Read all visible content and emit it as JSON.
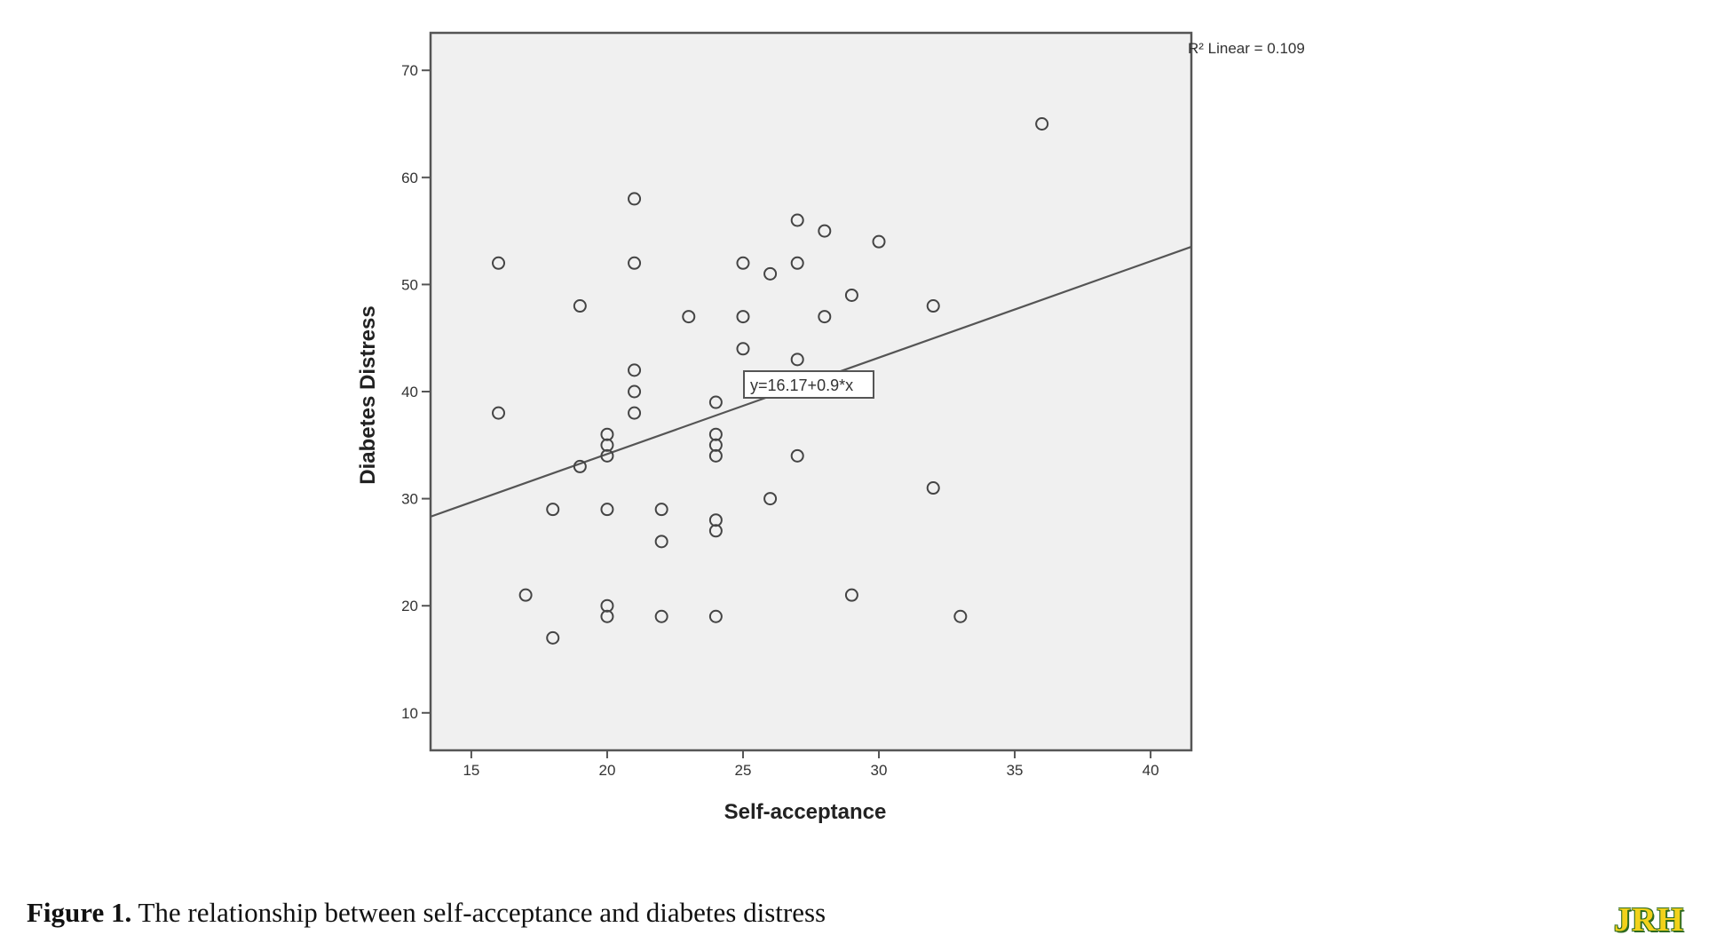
{
  "chart_data": {
    "type": "scatter",
    "xlabel": "Self-acceptance",
    "ylabel": "Diabetes Distress",
    "xlim": [
      13.5,
      41.5
    ],
    "ylim": [
      6.5,
      73.5
    ],
    "xticks": [
      15,
      20,
      25,
      30,
      35,
      40
    ],
    "yticks": [
      10,
      20,
      30,
      40,
      50,
      60,
      70
    ],
    "points": [
      [
        16,
        52
      ],
      [
        16,
        38
      ],
      [
        17,
        21
      ],
      [
        18,
        29
      ],
      [
        18,
        17
      ],
      [
        19,
        48
      ],
      [
        19,
        33
      ],
      [
        20,
        36
      ],
      [
        20,
        35
      ],
      [
        20,
        34
      ],
      [
        20,
        29
      ],
      [
        20,
        20
      ],
      [
        20,
        19
      ],
      [
        21,
        58
      ],
      [
        21,
        52
      ],
      [
        21,
        42
      ],
      [
        21,
        40
      ],
      [
        21,
        38
      ],
      [
        22,
        29
      ],
      [
        22,
        26
      ],
      [
        22,
        19
      ],
      [
        23,
        47
      ],
      [
        24,
        39
      ],
      [
        24,
        36
      ],
      [
        24,
        35
      ],
      [
        24,
        34
      ],
      [
        24,
        28
      ],
      [
        24,
        27
      ],
      [
        24,
        19
      ],
      [
        25,
        52
      ],
      [
        25,
        47
      ],
      [
        25,
        44
      ],
      [
        26,
        51
      ],
      [
        26,
        30
      ],
      [
        27,
        56
      ],
      [
        27,
        52
      ],
      [
        27,
        43
      ],
      [
        27,
        34
      ],
      [
        28,
        55
      ],
      [
        28,
        47
      ],
      [
        29,
        49
      ],
      [
        29,
        21
      ],
      [
        30,
        54
      ],
      [
        32,
        48
      ],
      [
        32,
        31
      ],
      [
        33,
        19
      ],
      [
        36,
        65
      ]
    ],
    "fit_line": {
      "intercept": 16.17,
      "slope": 0.9
    },
    "equation_label": "y=16.17+0.9*x",
    "r2_label": "R² Linear = 0.109",
    "grid": false,
    "background_color": "#f0f0f0",
    "marker_color": "#444444",
    "line_color": "#555555"
  },
  "caption": {
    "label": "Figure 1.",
    "text": " The relationship between self-acceptance and diabetes distress"
  },
  "logo": {
    "text": "JRH"
  }
}
